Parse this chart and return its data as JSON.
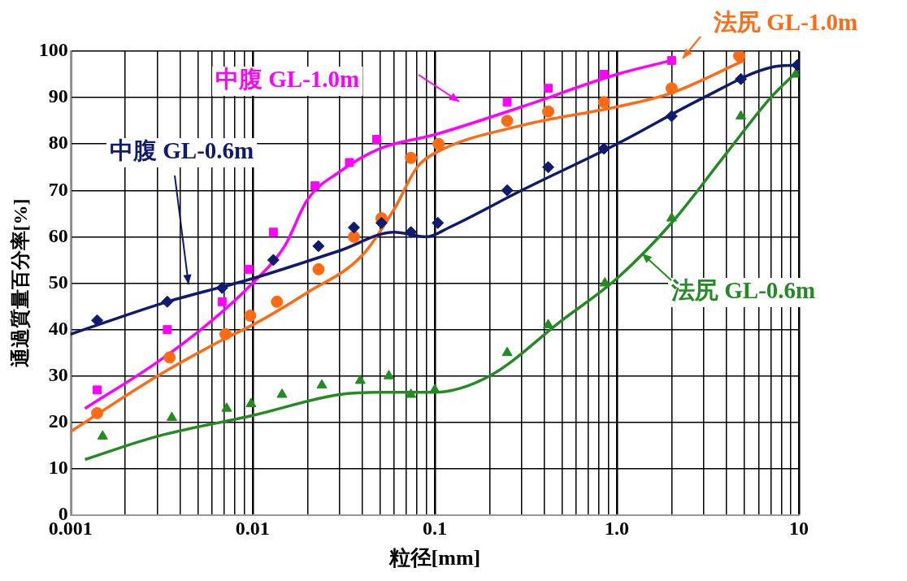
{
  "chart_data": {
    "type": "scatter",
    "xlabel": "粒径[mm]",
    "ylabel": "通過質量百分率[%]",
    "log": "x",
    "grid": true,
    "xlim": [
      0.001,
      10
    ],
    "ylim": [
      0,
      100
    ],
    "xticks": [
      0.001,
      {
        "value": 0.002,
        "label": null
      },
      {
        "value": 0.003,
        "label": null
      },
      {
        "value": 0.004,
        "label": null
      },
      {
        "value": 0.005,
        "label": null
      },
      {
        "value": 0.006,
        "label": null
      },
      {
        "value": 0.007,
        "label": null
      },
      {
        "value": 0.008,
        "label": null
      },
      {
        "value": 0.009,
        "label": null
      },
      0.01,
      {
        "value": 0.02,
        "label": null
      },
      {
        "value": 0.03,
        "label": null
      },
      {
        "value": 0.04,
        "label": null
      },
      {
        "value": 0.05,
        "label": null
      },
      {
        "value": 0.06,
        "label": null
      },
      {
        "value": 0.07,
        "label": null
      },
      {
        "value": 0.08,
        "label": null
      },
      {
        "value": 0.09,
        "label": null
      },
      0.1,
      {
        "value": 0.2,
        "label": null
      },
      {
        "value": 0.3,
        "label": null
      },
      {
        "value": 0.4,
        "label": null
      },
      {
        "value": 0.5,
        "label": null
      },
      {
        "value": 0.6,
        "label": null
      },
      {
        "value": 0.7,
        "label": null
      },
      {
        "value": 0.8,
        "label": null
      },
      {
        "value": 0.9,
        "label": null
      },
      {
        "value": 1,
        "label": "1.0"
      },
      {
        "value": 2,
        "label": null
      },
      {
        "value": 3,
        "label": null
      },
      {
        "value": 4,
        "label": null
      },
      {
        "value": 5,
        "label": null
      },
      {
        "value": 6,
        "label": null
      },
      {
        "value": 7,
        "label": null
      },
      {
        "value": 8,
        "label": null
      },
      {
        "value": 9,
        "label": null
      },
      10
    ],
    "yticks": [
      0,
      10,
      20,
      30,
      40,
      50,
      60,
      70,
      80,
      90,
      100
    ],
    "series": [
      {
        "name": "中腹 GL-0.6m",
        "marker": "diamond",
        "color": "#101a70",
        "x": [
          0.0014,
          0.0034,
          0.0068,
          0.013,
          0.023,
          0.036,
          0.051,
          0.074,
          0.104,
          0.25,
          0.42,
          0.85,
          2.0,
          4.8,
          9.8
        ],
        "values": [
          42,
          46,
          49,
          55,
          58,
          62,
          63,
          61,
          63,
          70,
          75,
          79,
          86,
          94,
          97
        ]
      },
      {
        "name": "中腹 GL-1.0m",
        "marker": "square",
        "color": "#ff00ff",
        "x": [
          0.0014,
          0.0034,
          0.0068,
          0.0095,
          0.013,
          0.022,
          0.034,
          0.048,
          0.25,
          0.42,
          0.85,
          2.0
        ],
        "values": [
          27,
          40,
          46,
          53,
          61,
          71,
          76,
          81,
          89,
          92,
          95,
          98
        ]
      },
      {
        "name": "法尻 GL-0.6m",
        "marker": "triangle",
        "color": "#228b22",
        "x": [
          0.0015,
          0.0036,
          0.0072,
          0.0098,
          0.0145,
          0.024,
          0.039,
          0.056,
          0.074,
          0.1,
          0.25,
          0.42,
          0.86,
          2.0,
          4.8,
          9.6
        ],
        "values": [
          17,
          21,
          23,
          24,
          26,
          28,
          29,
          30,
          26,
          27,
          35,
          41,
          50,
          64,
          86,
          95
        ]
      },
      {
        "name": "法尻 GL-1.0m",
        "marker": "circle",
        "color": "#ff6a13",
        "x": [
          0.0014,
          0.0035,
          0.0071,
          0.0097,
          0.0136,
          0.023,
          0.036,
          0.051,
          0.074,
          0.105,
          0.25,
          0.42,
          0.85,
          2.0,
          4.7
        ],
        "values": [
          22,
          34,
          39,
          43,
          46,
          53,
          60,
          64,
          77,
          80,
          85,
          87,
          89,
          92,
          99
        ]
      },
      {
        "type": "line",
        "marker": "none",
        "color": "#101a70",
        "x": [
          0.001,
          0.0034,
          0.01,
          0.03,
          0.06,
          0.09,
          0.12,
          0.3,
          1,
          3,
          7,
          10
        ],
        "values": [
          39,
          46,
          51,
          57,
          61,
          60,
          62,
          70,
          80,
          90,
          96.5,
          97
        ]
      },
      {
        "type": "line",
        "marker": "none",
        "color": "#ff00ff",
        "x": [
          0.0012,
          0.003,
          0.006,
          0.01,
          0.015,
          0.02,
          0.03,
          0.05,
          0.1,
          0.3,
          1,
          2
        ],
        "values": [
          23,
          33,
          42,
          50,
          58,
          68,
          74,
          79,
          82,
          88,
          95,
          98
        ]
      },
      {
        "type": "line",
        "marker": "none",
        "color": "#228b22",
        "x": [
          0.0012,
          0.003,
          0.01,
          0.03,
          0.05,
          0.1,
          0.2,
          0.5,
          1,
          2,
          4,
          7,
          10
        ],
        "values": [
          12,
          17,
          21.5,
          26,
          26.5,
          26.5,
          30,
          42,
          51,
          63,
          78,
          90,
          96
        ]
      },
      {
        "type": "line",
        "marker": "none",
        "color": "#ff6a13",
        "x": [
          0.001,
          0.003,
          0.007,
          0.01,
          0.02,
          0.04,
          0.06,
          0.08,
          0.1,
          0.3,
          1,
          2,
          5
        ],
        "values": [
          18,
          30,
          38,
          41,
          48,
          56,
          66,
          75,
          78,
          84,
          88,
          91,
          98
        ]
      }
    ]
  }
}
